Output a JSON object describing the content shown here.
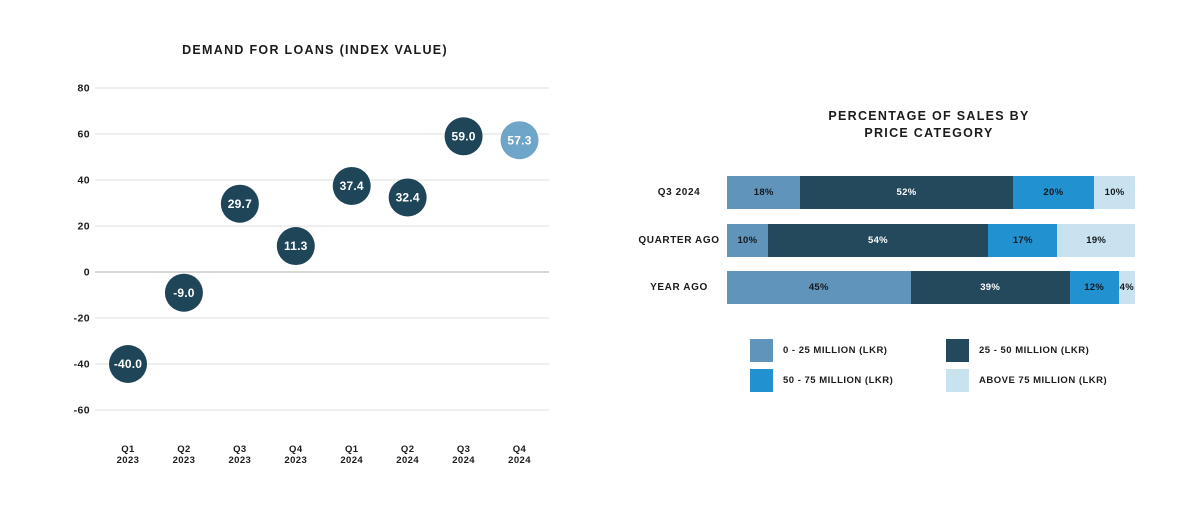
{
  "page": {
    "background": "#FFFFFF",
    "text_color": "#1B1B1B"
  },
  "chart_data": [
    {
      "type": "scatter",
      "variant": "bubble",
      "title": "DEMAND FOR LOANS (INDEX VALUE)",
      "categories": [
        [
          "Q1",
          "2023"
        ],
        [
          "Q2",
          "2023"
        ],
        [
          "Q3",
          "2023"
        ],
        [
          "Q4",
          "2023"
        ],
        [
          "Q1",
          "2024"
        ],
        [
          "Q2",
          "2024"
        ],
        [
          "Q3",
          "2024"
        ],
        [
          "Q4",
          "2024"
        ]
      ],
      "values": [
        -40.0,
        -9.0,
        29.7,
        11.3,
        37.4,
        32.4,
        59.0,
        57.3
      ],
      "point_labels": [
        "-40.0",
        "-9.0",
        "29.7",
        "11.3",
        "37.4",
        "32.4",
        "59.0",
        "57.3"
      ],
      "point_colors": [
        "#1F4558",
        "#1F4558",
        "#1F4558",
        "#1F4558",
        "#1F4558",
        "#1F4558",
        "#1F4558",
        "#6FA5C8"
      ],
      "yticks": [
        80,
        60,
        40,
        20,
        0,
        -20,
        -40,
        -60
      ],
      "ylim": [
        -75,
        90
      ],
      "grid": true,
      "legend_position": "none",
      "colors": {
        "grid": "#EFEFEF",
        "zero_line": "#D8D8D3",
        "point_label": "#FFFFFF",
        "axis_text": "#1B1B1B"
      }
    },
    {
      "type": "bar",
      "variant": "horizontal-stacked",
      "title": "PERCENTAGE OF SALES BY PRICE CATEGORY",
      "title_lines": [
        "PERCENTAGE OF SALES BY",
        "PRICE CATEGORY"
      ],
      "categories": [
        "Q3 2024",
        "QUARTER AGO",
        "YEAR AGO"
      ],
      "series": [
        {
          "name": "0 - 25 MILLION (LKR)",
          "color": "#6094BA",
          "text_color": "#13181C",
          "values": [
            18,
            10,
            45
          ]
        },
        {
          "name": "25 - 50 MILLION (LKR)",
          "color": "#24485C",
          "text_color": "#FFFFFF",
          "values": [
            52,
            54,
            39
          ]
        },
        {
          "name": "50 - 75 MILLION (LKR)",
          "color": "#2191CF",
          "text_color": "#13181C",
          "values": [
            20,
            17,
            12
          ]
        },
        {
          "name": "ABOVE 75 MILLION (LKR)",
          "color": "#C9E2F0",
          "text_color": "#13181C",
          "values": [
            10,
            19,
            4
          ]
        }
      ],
      "value_suffix": "%",
      "xlim": [
        0,
        100
      ],
      "grid": false,
      "legend_position": "bottom"
    }
  ]
}
